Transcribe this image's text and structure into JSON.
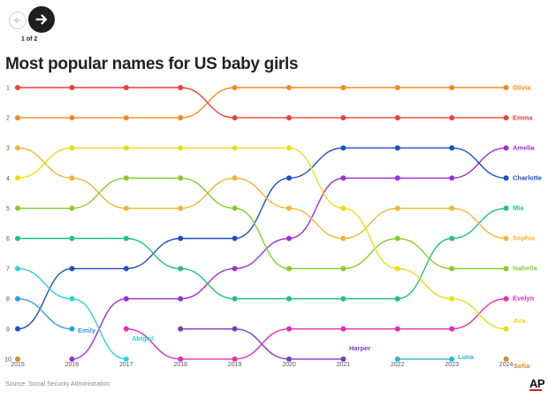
{
  "nav": {
    "prev_icon": "arrow-left-icon",
    "next_icon": "arrow-right-icon",
    "pager": "1 of 2"
  },
  "title": "Most popular names for US baby girls",
  "source": "Source: Social Security Administration",
  "logo": "AP",
  "chart_data": {
    "type": "line",
    "subtype": "bump",
    "title": "Most popular names for US baby girls",
    "x": [
      2015,
      2016,
      2017,
      2018,
      2019,
      2020,
      2021,
      2022,
      2023,
      2024
    ],
    "y_ticks": [
      1,
      2,
      3,
      4,
      5,
      6,
      7,
      8,
      9,
      10
    ],
    "y_axis": "rank",
    "ylim": [
      1,
      10
    ],
    "y_inverted": true,
    "grid": false,
    "series": [
      {
        "name": "Olivia",
        "color": "#f08a24",
        "ranks": [
          2,
          2,
          2,
          2,
          1,
          1,
          1,
          1,
          1,
          1
        ]
      },
      {
        "name": "Emma",
        "color": "#e8403a",
        "ranks": [
          1,
          1,
          1,
          1,
          2,
          2,
          2,
          2,
          2,
          2
        ]
      },
      {
        "name": "Amelia",
        "color": "#9b30d9",
        "ranks": [
          null,
          10,
          8,
          8,
          7,
          6,
          4,
          4,
          4,
          3
        ]
      },
      {
        "name": "Charlotte",
        "color": "#1d4fc4",
        "ranks": [
          9,
          7,
          7,
          6,
          6,
          4,
          3,
          3,
          3,
          4
        ]
      },
      {
        "name": "Mia",
        "color": "#1ec47a",
        "ranks": [
          6,
          6,
          6,
          7,
          8,
          8,
          8,
          8,
          6,
          5
        ]
      },
      {
        "name": "Sophia",
        "color": "#f2b632",
        "ranks": [
          3,
          4,
          5,
          5,
          4,
          5,
          6,
          5,
          5,
          6
        ]
      },
      {
        "name": "Isabella",
        "color": "#88cc2a",
        "ranks": [
          5,
          5,
          4,
          4,
          5,
          7,
          7,
          6,
          7,
          7
        ]
      },
      {
        "name": "Evelyn",
        "color": "#e52bb4",
        "ranks": [
          null,
          null,
          9,
          10,
          10,
          9,
          9,
          9,
          9,
          8
        ]
      },
      {
        "name": "Ava",
        "color": "#ecdc16",
        "ranks": [
          4,
          3,
          3,
          3,
          3,
          3,
          5,
          7,
          8,
          9
        ]
      },
      {
        "name": "Emily",
        "color": "#2f9fe6",
        "ranks": [
          8,
          9,
          null,
          null,
          null,
          null,
          null,
          null,
          null,
          null
        ]
      },
      {
        "name": "Abigail",
        "color": "#2fd3d3",
        "ranks": [
          7,
          8,
          10,
          null,
          null,
          null,
          null,
          null,
          null,
          null
        ]
      },
      {
        "name": "Harper",
        "color": "#7a3cc4",
        "ranks": [
          null,
          null,
          null,
          9,
          9,
          10,
          10,
          null,
          null,
          null
        ]
      },
      {
        "name": "Luna",
        "color": "#27b9d6",
        "ranks": [
          null,
          null,
          null,
          null,
          null,
          null,
          null,
          10,
          10,
          null
        ]
      },
      {
        "name": "Sofia",
        "color": "#d9892a",
        "ranks": [
          10,
          null,
          null,
          null,
          null,
          null,
          null,
          null,
          null,
          10
        ]
      }
    ]
  }
}
